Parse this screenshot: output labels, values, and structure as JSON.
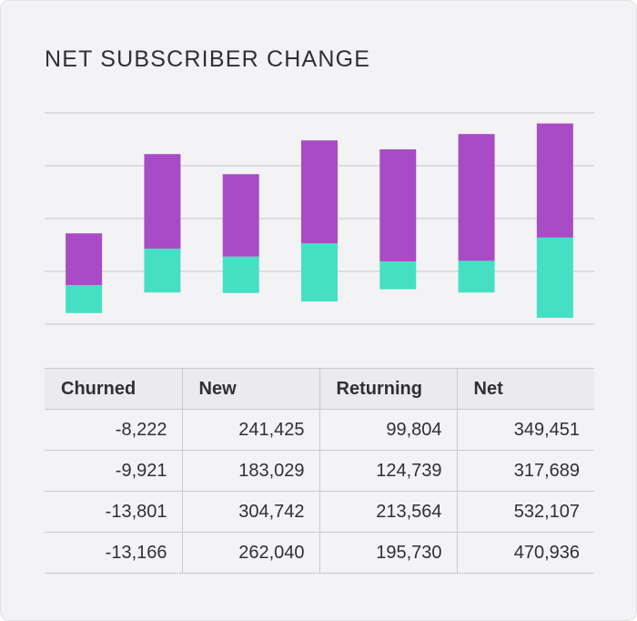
{
  "title": "NET SUBSCRIBER CHANGE",
  "chart_data": {
    "type": "floating-stacked-bar",
    "categories": [
      null,
      null,
      null,
      null,
      null,
      null,
      null
    ],
    "bottoms": [
      0.21,
      0.6,
      0.59,
      0.43,
      0.66,
      0.6,
      0.12
    ],
    "series": [
      {
        "color": "#45e0c4",
        "values": [
          0.53,
          0.83,
          0.69,
          1.1,
          0.53,
          0.6,
          1.52
        ]
      },
      {
        "color": "#a94bc6",
        "values": [
          0.98,
          1.79,
          1.56,
          1.95,
          2.12,
          2.4,
          2.16
        ]
      }
    ],
    "ylim": [
      0,
      4
    ],
    "yticks": [
      0,
      1,
      2,
      3,
      4
    ],
    "grid": true
  },
  "table": {
    "columns": [
      "Churned",
      "New",
      "Returning",
      "Net"
    ],
    "rows": [
      [
        "-8,222",
        "241,425",
        "99,804",
        "349,451"
      ],
      [
        "-9,921",
        "183,029",
        "124,739",
        "317,689"
      ],
      [
        "-13,801",
        "304,742",
        "213,564",
        "532,107"
      ],
      [
        "-13,166",
        "262,040",
        "195,730",
        "470,936"
      ]
    ]
  }
}
